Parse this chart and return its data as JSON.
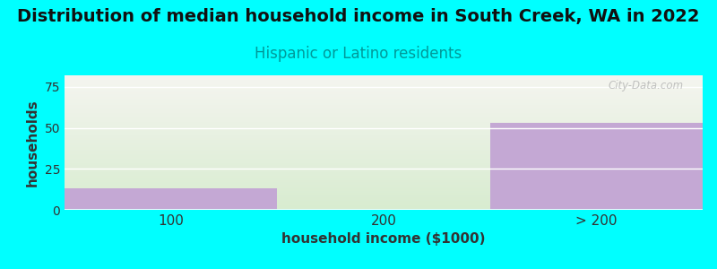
{
  "title": "Distribution of median household income in South Creek, WA in 2022",
  "subtitle": "Hispanic or Latino residents",
  "subtitle_color": "#009999",
  "xlabel": "household income ($1000)",
  "ylabel": "households",
  "categories": [
    "100",
    "200",
    "> 200"
  ],
  "values": [
    13,
    0,
    53
  ],
  "bar_color": "#c4a8d4",
  "bg_fill_top": "#f5f5f0",
  "bg_fill_bottom": "#d8ecd0",
  "ylim": [
    0,
    82
  ],
  "yticks": [
    0,
    25,
    50,
    75
  ],
  "background_color": "#00ffff",
  "plot_bg_color": "#ffffff",
  "title_fontsize": 14,
  "subtitle_fontsize": 12,
  "watermark": "City-Data.com"
}
